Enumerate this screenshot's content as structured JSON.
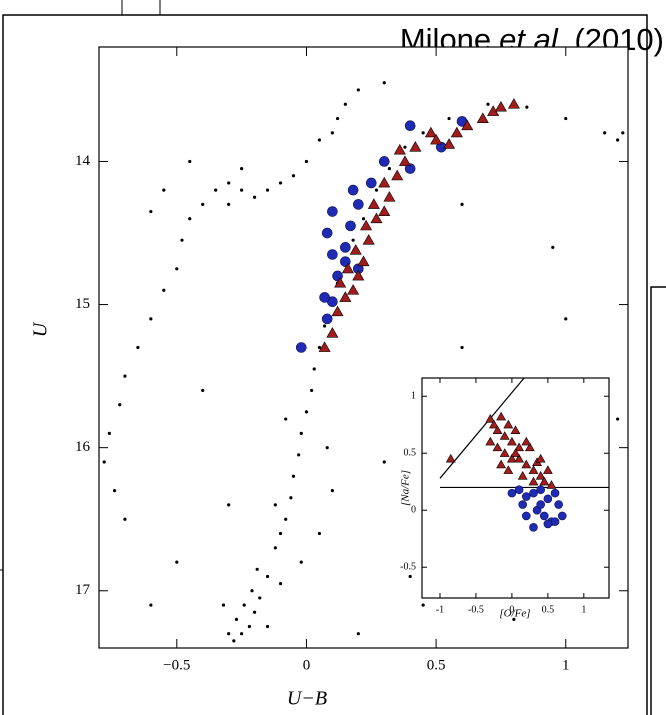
{
  "citation": {
    "author": "Milone",
    "etal": "et al.",
    "year": "(2010)"
  },
  "chart_data": [
    {
      "type": "scatter",
      "x_label": "U−B",
      "y_label": "U",
      "xlim": [
        -0.8,
        1.24
      ],
      "ylim": [
        17.4,
        13.2
      ],
      "xticks": [
        {
          "value": -0.5,
          "label": "−0.5"
        },
        0,
        0.5,
        1
      ],
      "yticks": [
        14,
        15,
        16,
        17
      ],
      "series": [
        {
          "color": "#000000",
          "marker": "dot",
          "x": [
            -0.28,
            -0.25,
            -0.22,
            -0.27,
            -0.2,
            -0.24,
            -0.18,
            -0.21,
            -0.15,
            -0.19,
            -0.12,
            -0.1,
            -0.08,
            -0.06,
            -0.05,
            -0.03,
            -0.02,
            0,
            0.02,
            0.03,
            0.05,
            0.07,
            0.1,
            0.12,
            0.15,
            0.18,
            0.22,
            0.27,
            0.32,
            0.38,
            0.45,
            0.55,
            0.7,
            0.85,
            1.0,
            1.15,
            1.2,
            -0.3,
            -0.15,
            -0.32,
            -0.1,
            -0.02,
            0.05,
            0.1,
            -0.12,
            0.08,
            -0.08,
            -0.78,
            -0.76,
            -0.74,
            -0.72,
            -0.7,
            -0.65,
            -0.6,
            -0.55,
            -0.5,
            -0.48,
            -0.45,
            -0.4,
            -0.35,
            -0.3,
            -0.25,
            -0.2,
            -0.15,
            -0.1,
            -0.05,
            0.0,
            0.05,
            0.1,
            0.12,
            0.15,
            0.2,
            0.3,
            -0.3,
            -0.25,
            -0.45,
            -0.55,
            -0.6,
            0.6,
            0.5,
            0.7,
            0.9,
            0.4,
            0.8,
            1.1,
            -0.5,
            -0.6,
            -0.7,
            0.3,
            1.2,
            1.0,
            0.95,
            1.22,
            0.6,
            -0.4,
            -0.3,
            0.45,
            0.2
          ],
          "values": [
            17.35,
            17.3,
            17.25,
            17.2,
            17.15,
            17.1,
            17.05,
            17.0,
            16.9,
            16.85,
            16.7,
            16.6,
            16.5,
            16.35,
            16.2,
            16.05,
            15.9,
            15.75,
            15.6,
            15.45,
            15.3,
            15.15,
            15.0,
            14.85,
            14.7,
            14.55,
            14.4,
            14.2,
            14.05,
            13.9,
            13.8,
            13.7,
            13.6,
            13.62,
            13.7,
            13.8,
            13.85,
            17.3,
            17.25,
            17.1,
            16.95,
            16.8,
            16.6,
            16.3,
            16.4,
            16.0,
            15.8,
            16.1,
            15.9,
            16.3,
            15.7,
            15.5,
            15.3,
            15.1,
            14.9,
            14.75,
            14.55,
            14.4,
            14.3,
            14.2,
            14.15,
            14.2,
            14.25,
            14.2,
            14.15,
            14.1,
            14.0,
            13.85,
            13.8,
            13.7,
            13.6,
            13.5,
            13.45,
            14.3,
            14.05,
            14.0,
            14.2,
            14.35,
            15.3,
            15.6,
            16.2,
            16.6,
            16.9,
            17.2,
            16.9,
            16.8,
            17.1,
            16.5,
            16.1,
            15.8,
            15.1,
            14.6,
            13.8,
            14.3,
            15.6,
            16.4,
            17.1,
            17.3
          ]
        },
        {
          "color": "#1f2bb5",
          "marker": "circle",
          "x": [
            -0.02,
            0.08,
            0.1,
            0.07,
            0.12,
            0.1,
            0.15,
            0.08,
            0.17,
            0.2,
            0.1,
            0.25,
            0.18,
            0.3,
            0.4,
            0.4,
            0.52,
            0.6,
            0.2,
            0.15
          ],
          "values": [
            15.3,
            15.1,
            14.98,
            14.95,
            14.8,
            14.65,
            14.6,
            14.5,
            14.45,
            14.3,
            14.35,
            14.15,
            14.2,
            14.0,
            14.05,
            13.75,
            13.9,
            13.72,
            14.75,
            14.7
          ]
        },
        {
          "color": "#a31c1c",
          "marker": "triangle",
          "x": [
            0.07,
            0.1,
            0.12,
            0.15,
            0.13,
            0.18,
            0.16,
            0.2,
            0.22,
            0.19,
            0.24,
            0.23,
            0.27,
            0.3,
            0.26,
            0.32,
            0.3,
            0.35,
            0.38,
            0.36,
            0.42,
            0.48,
            0.5,
            0.55,
            0.58,
            0.62,
            0.68,
            0.72,
            0.8,
            0.75
          ],
          "values": [
            15.3,
            15.2,
            15.05,
            14.95,
            14.85,
            14.9,
            14.75,
            14.8,
            14.7,
            14.62,
            14.55,
            14.45,
            14.4,
            14.35,
            14.3,
            14.25,
            14.15,
            14.1,
            14.0,
            13.92,
            13.9,
            13.8,
            13.85,
            13.88,
            13.8,
            13.75,
            13.7,
            13.65,
            13.6,
            13.62
          ]
        }
      ]
    },
    {
      "type": "scatter",
      "x_label": "[O/Fe]",
      "y_label": "[Na/Fe]",
      "xlim": [
        -1.25,
        1.35
      ],
      "ylim": [
        -0.77,
        1.16
      ],
      "xticks": [
        -1,
        -0.5,
        0,
        0.5,
        1
      ],
      "yticks": [
        -0.5,
        0,
        0.5,
        1
      ],
      "lines": [
        {
          "x": [
            -1,
            0.17
          ],
          "values": [
            0.28,
            1.16
          ]
        },
        {
          "x": [
            -1,
            1.35
          ],
          "values": [
            0.2,
            0.2
          ]
        }
      ],
      "series": [
        {
          "color": "#a31c1c",
          "marker": "triangle",
          "x": [
            -0.85,
            -0.3,
            -0.25,
            -0.2,
            -0.15,
            -0.1,
            -0.05,
            0.0,
            0.05,
            0.1,
            -0.2,
            -0.1,
            0.0,
            0.1,
            0.2,
            0.25,
            0.3,
            -0.3,
            -0.05,
            0.15,
            0.35,
            0.4,
            0.45,
            0.5,
            0.2,
            0.3,
            0.55,
            -0.15,
            0.05,
            0.4
          ],
          "values": [
            0.45,
            0.8,
            0.75,
            0.7,
            0.82,
            0.65,
            0.75,
            0.6,
            0.7,
            0.55,
            0.55,
            0.5,
            0.45,
            0.45,
            0.4,
            0.55,
            0.35,
            0.6,
            0.35,
            0.3,
            0.42,
            0.3,
            0.25,
            0.35,
            0.6,
            0.25,
            0.22,
            0.4,
            0.5,
            0.45
          ]
        },
        {
          "color": "#1f2bb5",
          "marker": "circle",
          "x": [
            0.0,
            0.1,
            0.2,
            0.3,
            0.4,
            0.5,
            0.6,
            0.65,
            0.2,
            0.35,
            0.45,
            0.55,
            0.6,
            0.15,
            0.3,
            0.5,
            0.7,
            0.4
          ],
          "values": [
            0.15,
            0.18,
            0.12,
            0.15,
            0.18,
            0.1,
            0.15,
            0.05,
            -0.05,
            0.0,
            -0.05,
            -0.1,
            -0.1,
            0.05,
            -0.15,
            -0.12,
            -0.05,
            0.05
          ]
        }
      ]
    }
  ]
}
